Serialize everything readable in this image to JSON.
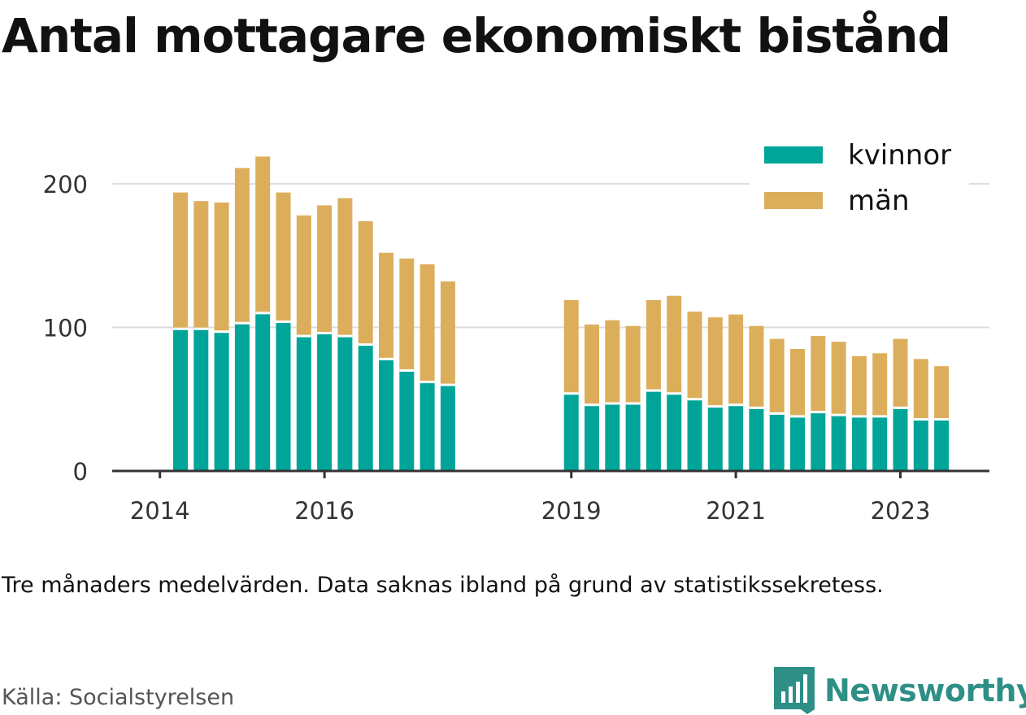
{
  "title": "Antal mottagare ekonomiskt bistånd",
  "note": "Tre månaders medelvärden. Data saknas ibland på grund av statistikssekretess.",
  "source": "Källa: Socialstyrelsen",
  "brand": {
    "name": "Newsworthy",
    "icon": "newsworthy-logo-icon",
    "color": "#2d8f86"
  },
  "colors": {
    "kvinnor": "#00a499",
    "man": "#dcae5c",
    "grid": "#dddddd",
    "axis": "#333333"
  },
  "chart_data": {
    "type": "bar",
    "stacked": true,
    "legend_position": "top-right",
    "grid": true,
    "ylim": [
      0,
      225
    ],
    "yticks": [
      0,
      100,
      200
    ],
    "xticks": [
      "2014",
      "2016",
      "2019",
      "2021",
      "2023"
    ],
    "series": [
      {
        "name": "kvinnor",
        "color": "#00a499"
      },
      {
        "name": "män",
        "color": "#dcae5c"
      }
    ],
    "points": [
      {
        "period": "2014-Q2",
        "kvinnor": 99,
        "man": 95
      },
      {
        "period": "2014-Q3",
        "kvinnor": 99,
        "man": 89
      },
      {
        "period": "2014-Q4",
        "kvinnor": 97,
        "man": 90
      },
      {
        "period": "2015-Q1",
        "kvinnor": 103,
        "man": 108
      },
      {
        "period": "2015-Q2",
        "kvinnor": 110,
        "man": 109
      },
      {
        "period": "2015-Q3",
        "kvinnor": 104,
        "man": 90
      },
      {
        "period": "2015-Q4",
        "kvinnor": 94,
        "man": 84
      },
      {
        "period": "2016-Q1",
        "kvinnor": 96,
        "man": 89
      },
      {
        "period": "2016-Q2",
        "kvinnor": 94,
        "man": 96
      },
      {
        "period": "2016-Q3",
        "kvinnor": 88,
        "man": 86
      },
      {
        "period": "2016-Q4",
        "kvinnor": 78,
        "man": 74
      },
      {
        "period": "2017-Q1",
        "kvinnor": 70,
        "man": 78
      },
      {
        "period": "2017-Q2",
        "kvinnor": 62,
        "man": 82
      },
      {
        "period": "2017-Q3",
        "kvinnor": 60,
        "man": 72
      },
      {
        "period": "2019-Q1",
        "kvinnor": 54,
        "man": 65
      },
      {
        "period": "2019-Q2",
        "kvinnor": 46,
        "man": 56
      },
      {
        "period": "2019-Q3",
        "kvinnor": 47,
        "man": 58
      },
      {
        "period": "2019-Q4",
        "kvinnor": 47,
        "man": 54
      },
      {
        "period": "2020-Q1",
        "kvinnor": 56,
        "man": 63
      },
      {
        "period": "2020-Q2",
        "kvinnor": 54,
        "man": 68
      },
      {
        "period": "2020-Q3",
        "kvinnor": 50,
        "man": 61
      },
      {
        "period": "2020-Q4",
        "kvinnor": 45,
        "man": 62
      },
      {
        "period": "2021-Q1",
        "kvinnor": 46,
        "man": 63
      },
      {
        "period": "2021-Q2",
        "kvinnor": 44,
        "man": 57
      },
      {
        "period": "2021-Q3",
        "kvinnor": 40,
        "man": 52
      },
      {
        "period": "2021-Q4",
        "kvinnor": 38,
        "man": 47
      },
      {
        "period": "2022-Q1",
        "kvinnor": 41,
        "man": 53
      },
      {
        "period": "2022-Q2",
        "kvinnor": 39,
        "man": 51
      },
      {
        "period": "2022-Q3",
        "kvinnor": 38,
        "man": 42
      },
      {
        "period": "2022-Q4",
        "kvinnor": 38,
        "man": 44
      },
      {
        "period": "2023-Q1",
        "kvinnor": 44,
        "man": 48
      },
      {
        "period": "2023-Q2",
        "kvinnor": 36,
        "man": 42
      },
      {
        "period": "2023-Q3",
        "kvinnor": 36,
        "man": 37
      }
    ]
  }
}
